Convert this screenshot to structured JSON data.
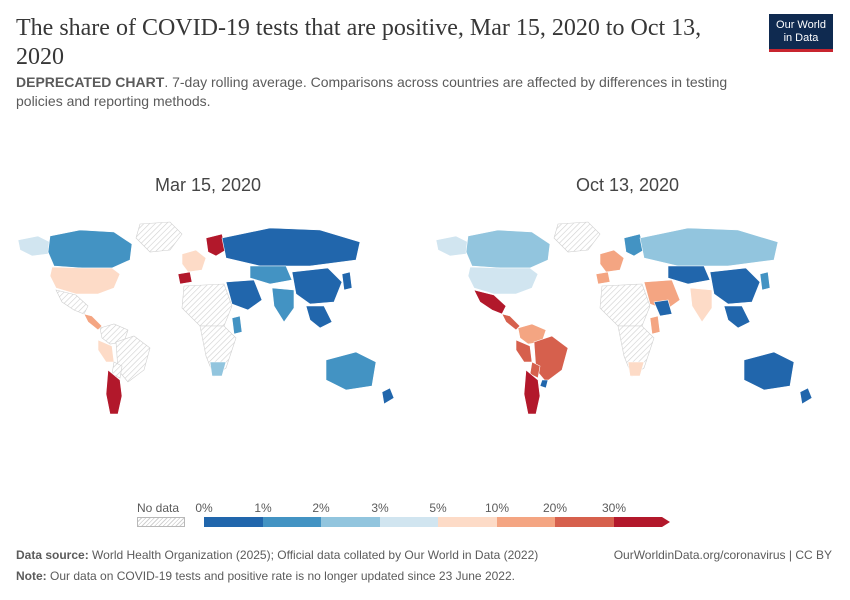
{
  "header": {
    "title": "The share of COVID-19 tests that are positive, Mar 15, 2020 to Oct 13, 2020",
    "subtitle_lead": "DEPRECATED CHART",
    "subtitle_rest": ". 7-day rolling average. Comparisons across countries are affected by differences in testing policies and reporting methods.",
    "logo_line1": "Our World",
    "logo_line2": "in Data"
  },
  "maps": [
    {
      "title": "Mar 15, 2020"
    },
    {
      "title": "Oct 13, 2020"
    }
  ],
  "legend": {
    "no_data_label": "No data",
    "ticks": [
      "0%",
      "1%",
      "2%",
      "3%",
      "5%",
      "10%",
      "20%",
      "30%"
    ],
    "colors": [
      "#2166ac",
      "#4393c3",
      "#92c5de",
      "#d1e5f0",
      "#fddbc7",
      "#f4a582",
      "#d6604d",
      "#b2182b"
    ]
  },
  "footer": {
    "source_label": "Data source:",
    "source_text": "World Health Organization (2025); Official data collated by Our World in Data (2022)",
    "link": "OurWorldinData.org/coronavirus | CC BY",
    "note_label": "Note:",
    "note_text": "Our data on COVID-19 tests and positive rate is no longer updated since 23 June 2022."
  }
}
